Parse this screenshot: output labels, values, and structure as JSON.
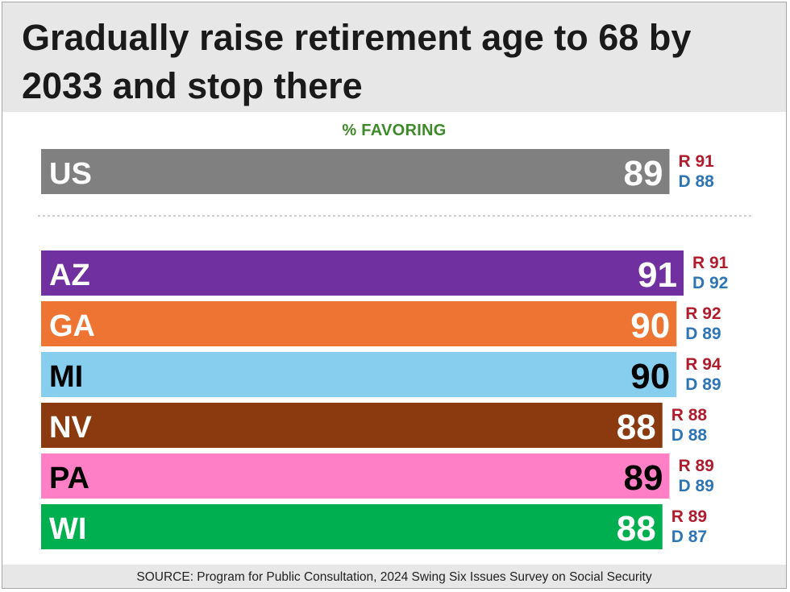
{
  "header": {
    "title": "Gradually raise retirement age to 68 by 2033 and stop there"
  },
  "subtitle": "% FAVORING",
  "source": "SOURCE: Program for Public Consultation, 2024 Swing Six Issues Survey on Social Security",
  "colors": {
    "republican": "#b01c2e",
    "democrat": "#2e75b6",
    "separator": "#bfbfbf"
  },
  "chart_data": {
    "type": "bar",
    "orientation": "horizontal",
    "title": "Gradually raise retirement age to 68 by 2033 and stop there",
    "xlabel": "% FAVORING",
    "xlim": [
      0,
      91
    ],
    "grid": false,
    "groups": [
      {
        "rows": [
          {
            "label": "US",
            "value": 89,
            "r": "R 91",
            "d": "D 88",
            "color": "#808080",
            "text_color": "#ffffff"
          }
        ]
      },
      {
        "rows": [
          {
            "label": "AZ",
            "value": 91,
            "r": "R 91",
            "d": "D 92",
            "color": "#7030a0",
            "text_color": "#ffffff"
          },
          {
            "label": "GA",
            "value": 90,
            "r": "R 92",
            "d": "D 89",
            "color": "#ed7432",
            "text_color": "#ffffff"
          },
          {
            "label": "MI",
            "value": 90,
            "r": "R 94",
            "d": "D 89",
            "color": "#87cdee",
            "text_color": "#000000"
          },
          {
            "label": "NV",
            "value": 88,
            "r": "R 88",
            "d": "D 88",
            "color": "#8b3a0f",
            "text_color": "#ffffff"
          },
          {
            "label": "PA",
            "value": 89,
            "r": "R 89",
            "d": "D 89",
            "color": "#ff7fc6",
            "text_color": "#000000"
          },
          {
            "label": "WI",
            "value": 88,
            "r": "R 89",
            "d": "D 87",
            "color": "#00b050",
            "text_color": "#ffffff"
          }
        ]
      }
    ]
  }
}
